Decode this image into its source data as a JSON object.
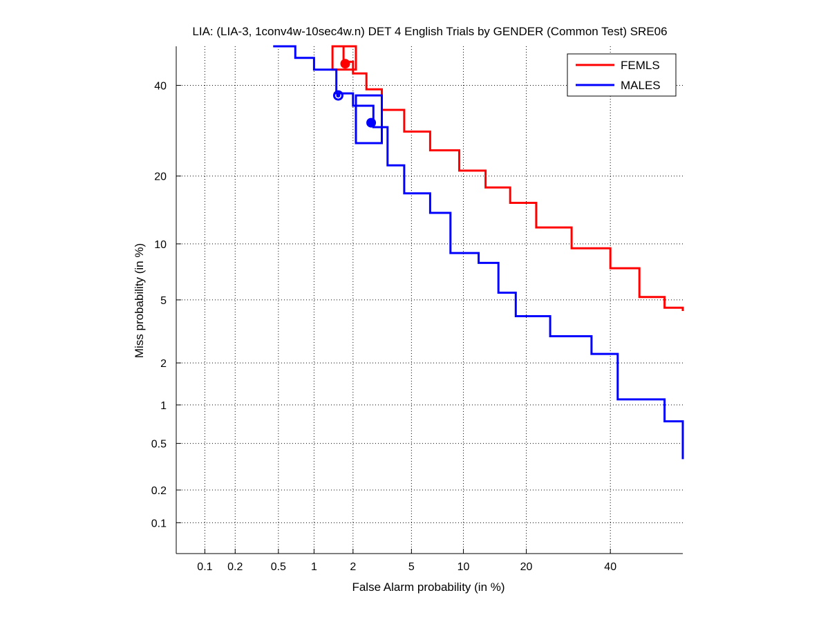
{
  "chart_data": {
    "type": "line",
    "title": "LIA: (LIA-3, 1conv4w-10sec4w.n) DET 4 English Trials by GENDER (Common Test) SRE06",
    "xlabel": "False Alarm probability (in %)",
    "ylabel": "Miss probability (in %)",
    "scale": "normal-deviate (probit)",
    "xlim": [
      0.05,
      60
    ],
    "ylim": [
      0.05,
      50
    ],
    "x_ticks": [
      0.1,
      0.2,
      0.5,
      1,
      2,
      5,
      10,
      20,
      40
    ],
    "x_tick_labels": [
      "0.1",
      "0.2",
      "0.5",
      "1",
      "2",
      "5",
      "10",
      "20",
      "40"
    ],
    "y_ticks": [
      0.1,
      0.2,
      0.5,
      1,
      2,
      5,
      10,
      20,
      40
    ],
    "y_tick_labels": [
      "0.1",
      "0.2",
      "0.5",
      "1",
      "2",
      "5",
      "10",
      "20",
      "40"
    ],
    "grid": true,
    "legend_position": "top-right",
    "series": [
      {
        "name": "FEMLS",
        "color": "#ff0000",
        "x": [
          1.45,
          1.7,
          2.0,
          2.5,
          3.2,
          4.5,
          6.5,
          9.5,
          13,
          17,
          22,
          30,
          40,
          48,
          55,
          60
        ],
        "y": [
          50,
          46,
          43,
          39,
          34,
          29,
          25,
          21,
          18,
          15.5,
          12,
          9.5,
          7.5,
          5.2,
          4.5,
          4.3
        ],
        "min_dcf_point": {
          "x": 1.75,
          "y": 45.5
        },
        "operating_box": {
          "x": [
            1.4,
            2.1
          ],
          "y": [
            44,
            50
          ]
        }
      },
      {
        "name": "MALES",
        "color": "#0000ff",
        "x": [
          0.45,
          0.7,
          1.0,
          1.5,
          2.0,
          2.8,
          3.5,
          4.5,
          6.5,
          8.5,
          12,
          15,
          18,
          25,
          35,
          42,
          55,
          60
        ],
        "y": [
          50,
          47,
          44,
          38,
          35,
          30,
          22,
          17,
          14,
          9,
          8,
          5.5,
          4.0,
          3.0,
          2.3,
          1.1,
          0.75,
          0.37
        ],
        "min_dcf_point": {
          "x": 2.7,
          "y": 31
        },
        "secondary_point": {
          "x": 1.55,
          "y": 37.5
        },
        "operating_box": {
          "x": [
            2.1,
            3.2
          ],
          "y": [
            26.5,
            37.5
          ]
        }
      }
    ]
  }
}
